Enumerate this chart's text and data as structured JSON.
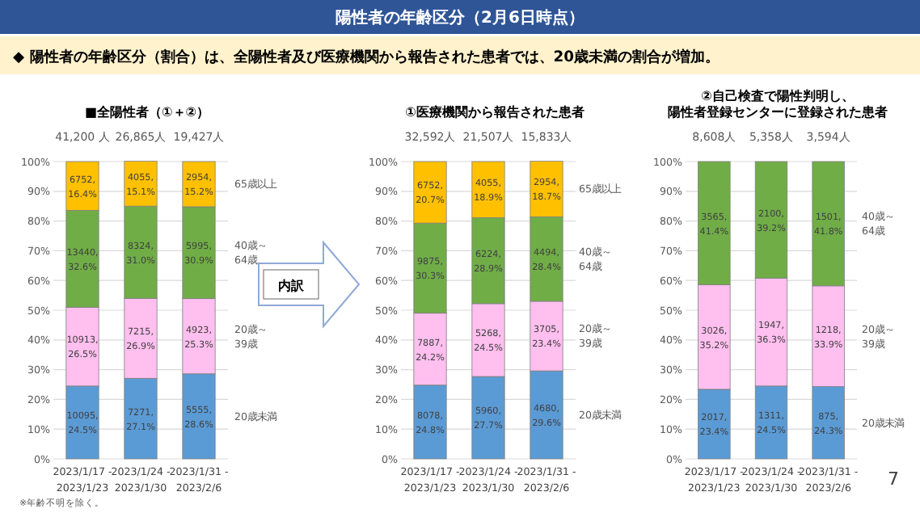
{
  "chart_data": [
    {
      "type": "other",
      "title": "陽性者の年齢区分（2月6日時点）",
      "subtitle": "◆ 陽性者の年齢区分（割合）は、全陽性者及び医療機関から報告された患者では、20歳未満の割合が増加。",
      "annotations": [
        "7"
      ]
    },
    {
      "type": "bar",
      "stacked": true,
      "grid": "y",
      "title": "■全陽性者（①＋②）",
      "categories": [
        "2023/1/17 - 2023/1/23",
        "2023/1/24 - 2023/1/30",
        "2023/1/31 - 2023/2/6"
      ],
      "ylim": [
        0,
        100
      ],
      "yticks": [
        {
          "value": 0,
          "label": "0%"
        },
        {
          "value": 10,
          "label": "10%"
        },
        {
          "value": 20,
          "label": "20%"
        },
        {
          "value": 30,
          "label": "30%"
        },
        {
          "value": 40,
          "label": "40%"
        },
        {
          "value": 50,
          "label": "50%"
        },
        {
          "value": 60,
          "label": "60%"
        },
        {
          "value": 70,
          "label": "70%"
        },
        {
          "value": 80,
          "label": "80%"
        },
        {
          "value": 90,
          "label": "90%"
        },
        {
          "value": 100,
          "label": "100%"
        }
      ],
      "annotations": [
        {
          "text": "41,200 人",
          "x": "2023/1/17 - 2023/1/23",
          "y": 100
        },
        {
          "text": "26,865人",
          "x": "2023/1/24 - 2023/1/30",
          "y": 100
        },
        {
          "text": "19,427人",
          "x": "2023/1/31 - 2023/2/6",
          "y": 100
        },
        "※年齢不明を除く。"
      ],
      "series": [
        {
          "name": "20歳未満",
          "color": "#5b9bd5",
          "values": [
            24.5,
            27.1,
            28.6
          ],
          "value_labels": [
            "10095, 24.5%",
            "7271, 27.1%",
            "5555, 28.6%"
          ]
        },
        {
          "name": "20歳～39歳",
          "color": "#ffbfef",
          "values": [
            26.5,
            26.9,
            25.3
          ],
          "value_labels": [
            "10913, 26.5%",
            "7215, 26.9%",
            "4923, 25.3%"
          ]
        },
        {
          "name": "40歳～64歳",
          "color": "#70ad47",
          "values": [
            32.6,
            31.0,
            30.9
          ],
          "value_labels": [
            "13440, 32.6%",
            "8324, 31.0%",
            "5995, 30.9%"
          ]
        },
        {
          "name": "65歳以上",
          "color": "#ffc000",
          "values": [
            16.4,
            15.1,
            15.2
          ],
          "value_labels": [
            "6752, 16.4%",
            "4055, 15.1%",
            "2954, 15.2%"
          ]
        }
      ]
    },
    {
      "type": "bar",
      "stacked": true,
      "grid": "y",
      "title": "①医療機関から報告された患者",
      "categories": [
        "2023/1/17 - 2023/1/23",
        "2023/1/24 - 2023/1/30",
        "2023/1/31 - 2023/2/6"
      ],
      "ylim": [
        0,
        100
      ],
      "yticks": [
        {
          "value": 0,
          "label": "0%"
        },
        {
          "value": 10,
          "label": "10%"
        },
        {
          "value": 20,
          "label": "20%"
        },
        {
          "value": 30,
          "label": "30%"
        },
        {
          "value": 40,
          "label": "40%"
        },
        {
          "value": 50,
          "label": "50%"
        },
        {
          "value": 60,
          "label": "60%"
        },
        {
          "value": 70,
          "label": "70%"
        },
        {
          "value": 80,
          "label": "80%"
        },
        {
          "value": 90,
          "label": "90%"
        },
        {
          "value": 100,
          "label": "100%"
        }
      ],
      "annotations": [
        {
          "text": "32,592人",
          "x": "2023/1/17 - 2023/1/23",
          "y": 100
        },
        {
          "text": "21,507人",
          "x": "2023/1/24 - 2023/1/30",
          "y": 100
        },
        {
          "text": "15,833人",
          "x": "2023/1/31 - 2023/2/6",
          "y": 100
        },
        "内訳"
      ],
      "series": [
        {
          "name": "20歳未満",
          "color": "#5b9bd5",
          "values": [
            24.8,
            27.7,
            29.6
          ],
          "value_labels": [
            "8078, 24.8%",
            "5960, 27.7%",
            "4680, 29.6%"
          ]
        },
        {
          "name": "20歳～39歳",
          "color": "#ffbfef",
          "values": [
            24.2,
            24.5,
            23.4
          ],
          "value_labels": [
            "7887, 24.2%",
            "5268, 24.5%",
            "3705, 23.4%"
          ]
        },
        {
          "name": "40歳～64歳",
          "color": "#70ad47",
          "values": [
            30.3,
            28.9,
            28.4
          ],
          "value_labels": [
            "9875, 30.3%",
            "6224, 28.9%",
            "4494, 28.4%"
          ]
        },
        {
          "name": "65歳以上",
          "color": "#ffc000",
          "values": [
            20.7,
            18.9,
            18.7
          ],
          "value_labels": [
            "6752, 20.7%",
            "4055, 18.9%",
            "2954, 18.7%"
          ]
        }
      ]
    },
    {
      "type": "bar",
      "stacked": true,
      "grid": "y",
      "title": "②自己検査で陽性判明し、陽性者登録センターに登録された患者",
      "categories": [
        "2023/1/17 - 2023/1/23",
        "2023/1/24 - 2023/1/30",
        "2023/1/31 - 2023/2/6"
      ],
      "ylim": [
        0,
        100
      ],
      "yticks": [
        {
          "value": 0,
          "label": "0%"
        },
        {
          "value": 10,
          "label": "10%"
        },
        {
          "value": 20,
          "label": "20%"
        },
        {
          "value": 30,
          "label": "30%"
        },
        {
          "value": 40,
          "label": "40%"
        },
        {
          "value": 50,
          "label": "50%"
        },
        {
          "value": 60,
          "label": "60%"
        },
        {
          "value": 70,
          "label": "70%"
        },
        {
          "value": 80,
          "label": "80%"
        },
        {
          "value": 90,
          "label": "90%"
        },
        {
          "value": 100,
          "label": "100%"
        }
      ],
      "annotations": [
        {
          "text": "8,608人",
          "x": "2023/1/17 - 2023/1/23",
          "y": 100
        },
        {
          "text": "5,358人",
          "x": "2023/1/24 - 2023/1/30",
          "y": 100
        },
        {
          "text": "3,594人",
          "x": "2023/1/31 - 2023/2/6",
          "y": 100
        }
      ],
      "series": [
        {
          "name": "20歳未満",
          "color": "#5b9bd5",
          "values": [
            23.4,
            24.5,
            24.3
          ],
          "value_labels": [
            "2017, 23.4%",
            "1311, 24.5%",
            "875, 24.3%"
          ]
        },
        {
          "name": "20歳～39歳",
          "color": "#ffbfef",
          "values": [
            35.2,
            36.3,
            33.9
          ],
          "value_labels": [
            "3026, 35.2%",
            "1947, 36.3%",
            "1218, 33.9%"
          ]
        },
        {
          "name": "40歳～64歳",
          "color": "#70ad47",
          "values": [
            41.4,
            39.2,
            41.8
          ],
          "value_labels": [
            "3565, 41.4%",
            "2100, 39.2%",
            "1501, 41.8%"
          ]
        }
      ]
    }
  ]
}
